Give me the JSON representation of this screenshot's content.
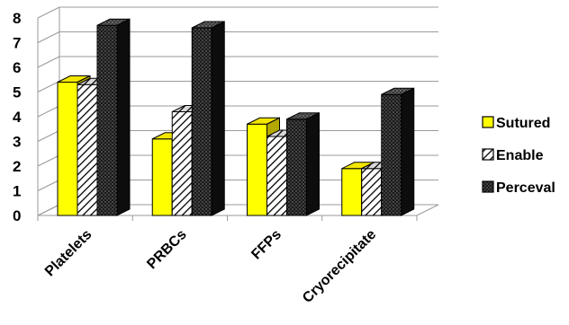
{
  "chart_data": {
    "type": "bar",
    "categories": [
      "Platelets",
      "PRBCs",
      "FFPs",
      "Cryorecipitate"
    ],
    "series": [
      {
        "name": "Sutured",
        "values": [
          5.4,
          3.1,
          3.7,
          1.9
        ],
        "color": "#ffff00",
        "pattern": "solid"
      },
      {
        "name": "Enable",
        "values": [
          5.3,
          4.2,
          3.2,
          1.9
        ],
        "color": "#ffffff",
        "pattern": "diagonal-hatch"
      },
      {
        "name": "Perceval",
        "values": [
          7.7,
          7.6,
          3.9,
          4.9
        ],
        "color": "#1a1a1a",
        "pattern": "dotted-dark"
      }
    ],
    "ylim": [
      0,
      8
    ],
    "yticks": [
      "0",
      "1",
      "2",
      "3",
      "4",
      "5",
      "6",
      "7",
      "8"
    ],
    "grid": true,
    "legend_position": "right",
    "style": "3d-clustered-column"
  }
}
